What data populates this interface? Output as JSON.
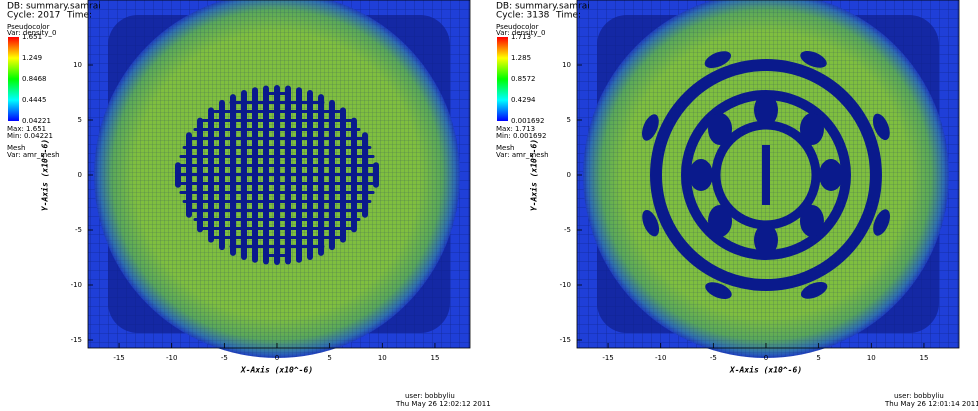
{
  "panels": [
    {
      "db": "DB: summary.samrai",
      "cycle": "Cycle: 2017",
      "time": "Time:",
      "plot": "Pseudocolor",
      "var": "Var: density_0",
      "legend_labels": [
        "1.651",
        "1.249",
        "0.8468",
        "0.4445",
        "0.04221"
      ],
      "max": "Max: 1.651",
      "min": "Min: 0.04221",
      "mesh": "Mesh",
      "mesh_var": "Var: amr_mesh",
      "xticks": [
        -15,
        -10,
        -5,
        0,
        5,
        10,
        15
      ],
      "yticks": [
        -15,
        -10,
        -5,
        0,
        5,
        10
      ],
      "x_label": "X-Axis (x10^-6)",
      "y_label": "Y-Axis (x10^-6)",
      "user": "user: bobbyliu",
      "date": "Thu May 26 12:02:12 2011"
    },
    {
      "db": "DB: summary.samrai",
      "cycle": "Cycle: 3138",
      "time": "Time:",
      "plot": "Pseudocolor",
      "var": "Var: density_0",
      "legend_labels": [
        "1.713",
        "1.285",
        "0.8572",
        "0.4294",
        "0.001692"
      ],
      "max": "Max: 1.713",
      "min": "Min: 0.001692",
      "mesh": "Mesh",
      "mesh_var": "Var: amr_mesh",
      "xticks": [
        -15,
        -10,
        -5,
        0,
        5,
        10,
        15
      ],
      "yticks": [
        -15,
        -10,
        -5,
        0,
        5,
        10
      ],
      "x_label": "X-Axis (x10^-6)",
      "y_label": "Y-Axis (x10^-6)",
      "user": "user: bobbyliu",
      "date": "Thu May 26 12:01:14 2011"
    }
  ]
}
